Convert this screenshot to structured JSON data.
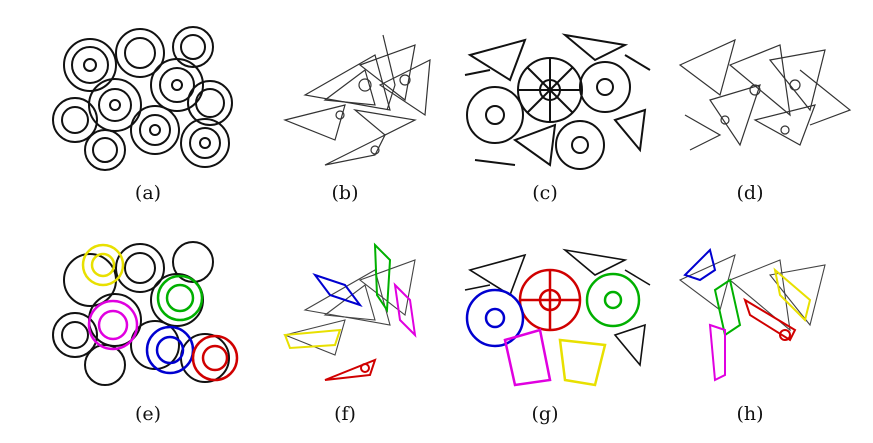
{
  "figure": {
    "panels": [
      {
        "label": "a",
        "caption": "(a)",
        "content": "edge map, stacked round parts (black line drawing)"
      },
      {
        "label": "b",
        "caption": "(b)",
        "content": "edge map, scattered triangular brackets (light line drawing)"
      },
      {
        "label": "c",
        "caption": "(c)",
        "content": "edge map, cluttered round and triangular parts"
      },
      {
        "label": "d",
        "caption": "(d)",
        "content": "edge map, scattered triangular parts"
      },
      {
        "label": "e",
        "caption": "(e)",
        "content": "detections on (a)",
        "colors": [
          "yellow",
          "green",
          "magenta",
          "blue",
          "red"
        ]
      },
      {
        "label": "f",
        "caption": "(f)",
        "content": "detections on (b)",
        "colors": [
          "blue",
          "green",
          "magenta",
          "yellow",
          "red"
        ]
      },
      {
        "label": "g",
        "caption": "(g)",
        "content": "detections on (c)",
        "colors": [
          "blue",
          "red",
          "green",
          "magenta",
          "yellow"
        ]
      },
      {
        "label": "h",
        "caption": "(h)",
        "content": "detections on (d)",
        "colors": [
          "blue",
          "green",
          "red",
          "yellow",
          "magenta"
        ]
      }
    ],
    "colors": {
      "yellow": "#e8e000",
      "green": "#00b000",
      "magenta": "#e000e0",
      "blue": "#0000d0",
      "red": "#d00000",
      "edge": "#111111"
    }
  }
}
